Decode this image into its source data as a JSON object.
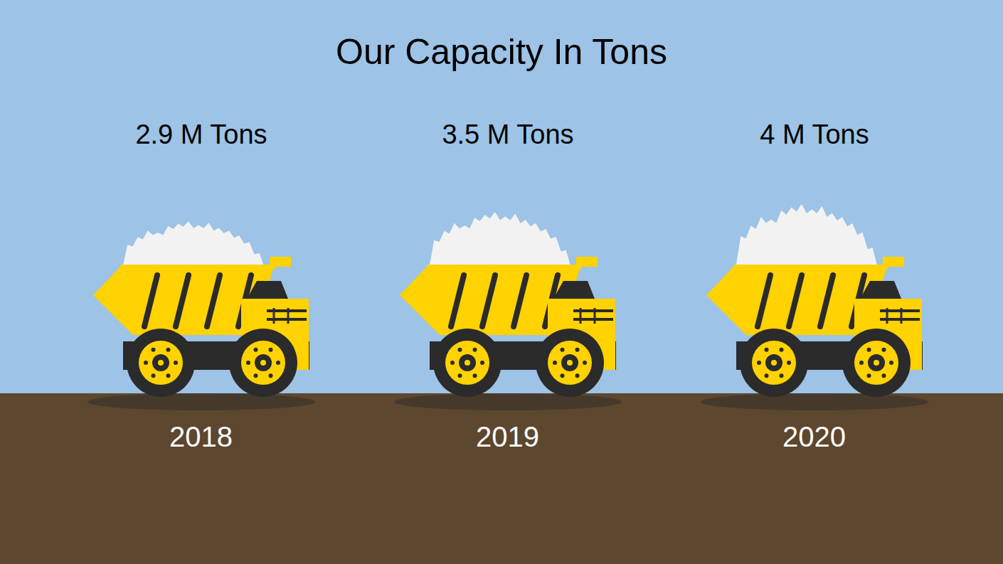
{
  "chart_data": {
    "type": "bar",
    "title": "Our Capacity In Tons",
    "categories": [
      "2018",
      "2019",
      "2020"
    ],
    "values": [
      2.9,
      3.5,
      4
    ],
    "value_labels": [
      "2.9 M Tons",
      "3.5 M Tons",
      "4 M Tons"
    ],
    "data_labels": true,
    "tick_labels": "x",
    "color": "#ffd200"
  }
}
